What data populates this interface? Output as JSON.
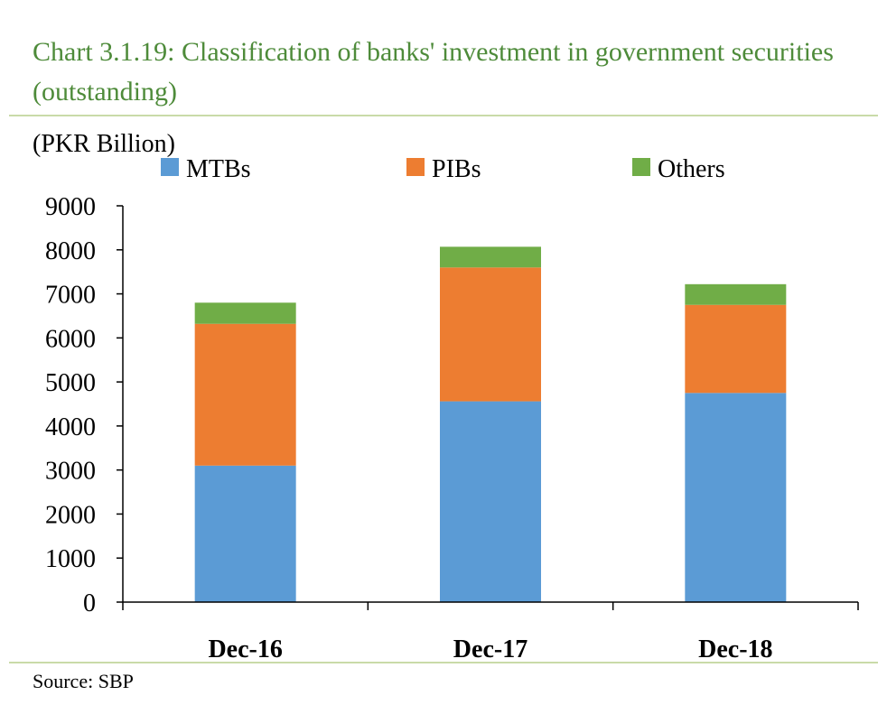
{
  "title": "Chart 3.1.19: Classification of banks' investment in government securities (outstanding)",
  "source": "Source:  SBP",
  "chart_data": {
    "type": "bar",
    "stacked": true,
    "title": "Chart 3.1.19: Classification of banks' investment in government securities (outstanding)",
    "unit_label": "(PKR Billion)",
    "categories": [
      "Dec-16",
      "Dec-17",
      "Dec-18"
    ],
    "series": [
      {
        "name": "MTBs",
        "color": "#5b9bd5",
        "values": [
          3100,
          4560,
          4750
        ]
      },
      {
        "name": "PIBs",
        "color": "#ed7d31",
        "values": [
          3220,
          3040,
          2000
        ]
      },
      {
        "name": "Others",
        "color": "#70ad47",
        "values": [
          480,
          470,
          470
        ]
      }
    ],
    "ylim": [
      0,
      9000
    ],
    "yticks": [
      0,
      1000,
      2000,
      3000,
      4000,
      5000,
      6000,
      7000,
      8000,
      9000
    ],
    "grid": false,
    "legend": "top"
  }
}
